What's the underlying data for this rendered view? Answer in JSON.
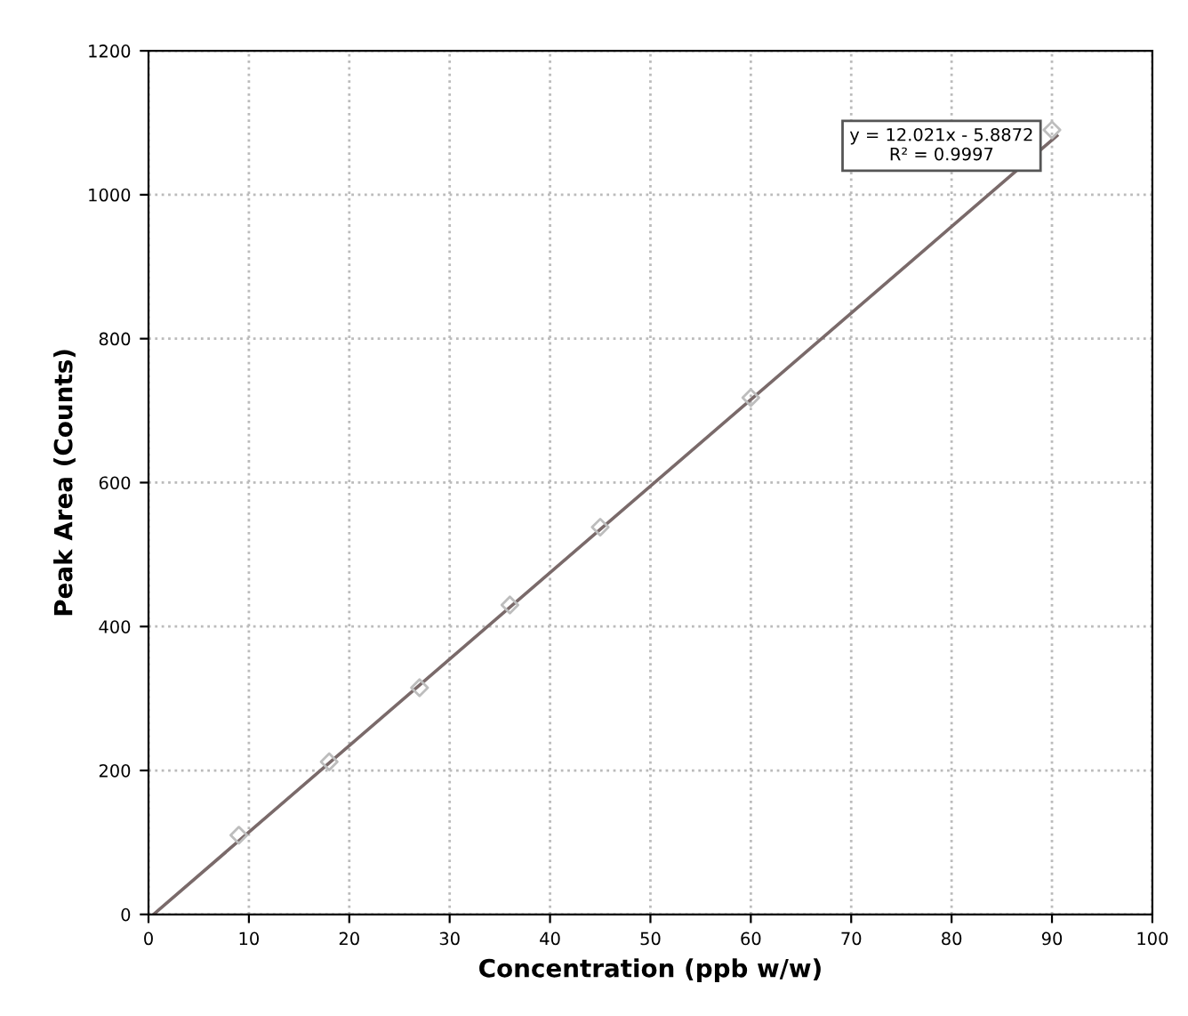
{
  "chart_data": {
    "type": "scatter",
    "xlabel": "Concentration (ppb w/w)",
    "ylabel": "Peak Area (Counts)",
    "xlim": [
      0,
      100
    ],
    "xticks": [
      0,
      10,
      20,
      30,
      40,
      50,
      60,
      70,
      80,
      90,
      100
    ],
    "ylim": [
      0,
      1200
    ],
    "yticks": [
      0,
      200,
      400,
      600,
      800,
      1000,
      1200
    ],
    "grid": true,
    "series": [
      {
        "marker": "diamond",
        "color": "#bdbdbd",
        "x": [
          9,
          18,
          27,
          36,
          45,
          60,
          90
        ],
        "values": [
          110,
          212,
          315,
          430,
          538,
          718,
          1090
        ]
      },
      {
        "type": "line",
        "color": "#7a6a6a",
        "x": [
          0.5,
          90.5
        ],
        "values": [
          0,
          1082
        ],
        "line_style": "solid"
      }
    ],
    "annotations": [
      "y = 12.021x - 5.8872",
      "R² = 0.9997"
    ]
  }
}
